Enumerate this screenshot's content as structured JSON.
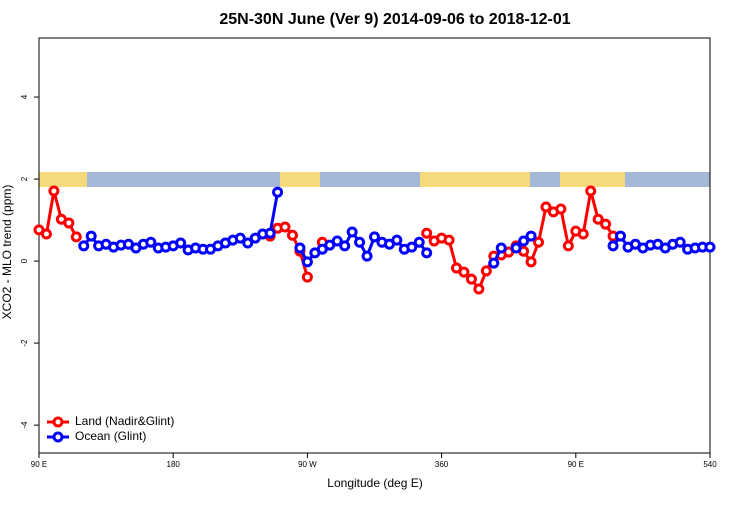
{
  "chart_data": {
    "type": "line",
    "title": "25N-30N June (Ver 9)   2014-09-06 to 2018-12-01",
    "x_label": "Longitude (deg E)",
    "y_label": "XCO2 - MLO trend (ppm)",
    "x": [
      90,
      95,
      100,
      105,
      110,
      115,
      120,
      125,
      130,
      135,
      140,
      145,
      150,
      155,
      160,
      165,
      170,
      175,
      180,
      185,
      190,
      195,
      200,
      205,
      210,
      215,
      220,
      225,
      230,
      235,
      240,
      245,
      250,
      255,
      260,
      265,
      270,
      275,
      280,
      285,
      290,
      295,
      300,
      305,
      310,
      315,
      320,
      325,
      330,
      335,
      340,
      345,
      350,
      355,
      360,
      365,
      370,
      375,
      380,
      385,
      390,
      395,
      400,
      405,
      410,
      415,
      420,
      425,
      430,
      435,
      440,
      445,
      450,
      455,
      460,
      465,
      470,
      475,
      480,
      485,
      490,
      495,
      500,
      505,
      510,
      515,
      520,
      525,
      530,
      535,
      540
    ],
    "series": [
      {
        "name": "Land (Nadir&Glint)",
        "color": "#ff0000",
        "values": [
          0.76,
          0.66,
          1.71,
          1.02,
          0.93,
          0.59,
          null,
          null,
          null,
          null,
          null,
          null,
          null,
          null,
          null,
          null,
          null,
          null,
          null,
          null,
          null,
          null,
          null,
          null,
          null,
          null,
          null,
          null,
          null,
          null,
          null,
          0.61,
          0.8,
          0.83,
          0.63,
          0.24,
          -0.39,
          null,
          0.46,
          null,
          null,
          null,
          null,
          null,
          null,
          null,
          null,
          null,
          null,
          null,
          null,
          null,
          0.68,
          0.49,
          0.56,
          0.51,
          -0.17,
          -0.27,
          -0.44,
          -0.68,
          -0.24,
          0.12,
          0.15,
          0.22,
          0.37,
          0.24,
          -0.02,
          0.46,
          1.32,
          1.2,
          1.27,
          0.37,
          0.73,
          0.66,
          1.71,
          1.02,
          0.9,
          0.61,
          null,
          null,
          null,
          null,
          null,
          null,
          null,
          null,
          null,
          null,
          null,
          null,
          null
        ]
      },
      {
        "name": "Ocean (Glint)",
        "color": "#0000ff",
        "values": [
          null,
          null,
          null,
          null,
          null,
          null,
          0.37,
          0.61,
          0.37,
          0.41,
          0.34,
          0.39,
          0.41,
          0.32,
          0.41,
          0.46,
          0.32,
          0.34,
          0.37,
          0.44,
          0.27,
          0.32,
          0.29,
          0.29,
          0.37,
          0.44,
          0.51,
          0.56,
          0.44,
          0.56,
          0.66,
          0.68,
          1.68,
          null,
          null,
          0.32,
          -0.02,
          0.2,
          0.29,
          0.39,
          0.49,
          0.37,
          0.71,
          0.46,
          0.12,
          0.59,
          0.46,
          0.41,
          0.51,
          0.29,
          0.34,
          0.46,
          0.2,
          null,
          null,
          null,
          null,
          null,
          null,
          null,
          null,
          -0.05,
          0.32,
          null,
          0.32,
          0.49,
          0.61,
          null,
          null,
          null,
          null,
          null,
          null,
          null,
          null,
          null,
          null,
          0.37,
          0.61,
          0.34,
          0.41,
          0.32,
          0.39,
          0.41,
          0.32,
          0.41,
          0.46,
          0.29,
          0.32,
          0.34,
          0.34
        ]
      }
    ],
    "xlim": [
      90,
      540
    ],
    "xticks": [
      {
        "value": 90,
        "label": "90 E"
      },
      180,
      {
        "value": 270,
        "label": "90 W"
      },
      360,
      {
        "value": 450,
        "label": "90 E"
      },
      540
    ],
    "ylim": [
      -4.68,
      5.44
    ],
    "yticks": [
      -4,
      -2,
      0,
      2,
      4
    ],
    "grid": false,
    "legend": "bottom-left"
  }
}
